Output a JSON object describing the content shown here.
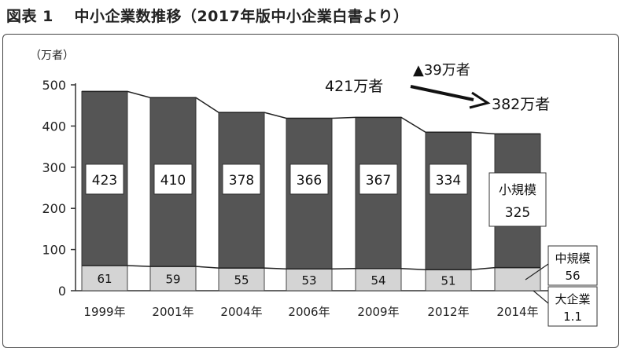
{
  "title": "図表 1　 中小企業数推移（2017年版中小企業白書より）",
  "chart_data": {
    "type": "bar",
    "stacked": true,
    "unit_label": "（万者）",
    "categories": [
      "1999年",
      "2001年",
      "2004年",
      "2006年",
      "2009年",
      "2012年",
      "2014年"
    ],
    "series": [
      {
        "name": "中規模",
        "values": [
          61,
          59,
          55,
          53,
          54,
          51,
          56
        ],
        "color": "#d4d4d4"
      },
      {
        "name": "小規模",
        "values": [
          423,
          410,
          378,
          366,
          367,
          334,
          325
        ],
        "color": "#555555"
      }
    ],
    "large_enterprise": {
      "name": "大企業",
      "value": 1.1
    },
    "ylim": [
      0,
      500
    ],
    "yticks": [
      0,
      100,
      200,
      300,
      400,
      500
    ],
    "grid": false,
    "annotations": {
      "start_total": "421万者",
      "end_total": "382万者",
      "change": "▲39万者"
    }
  }
}
